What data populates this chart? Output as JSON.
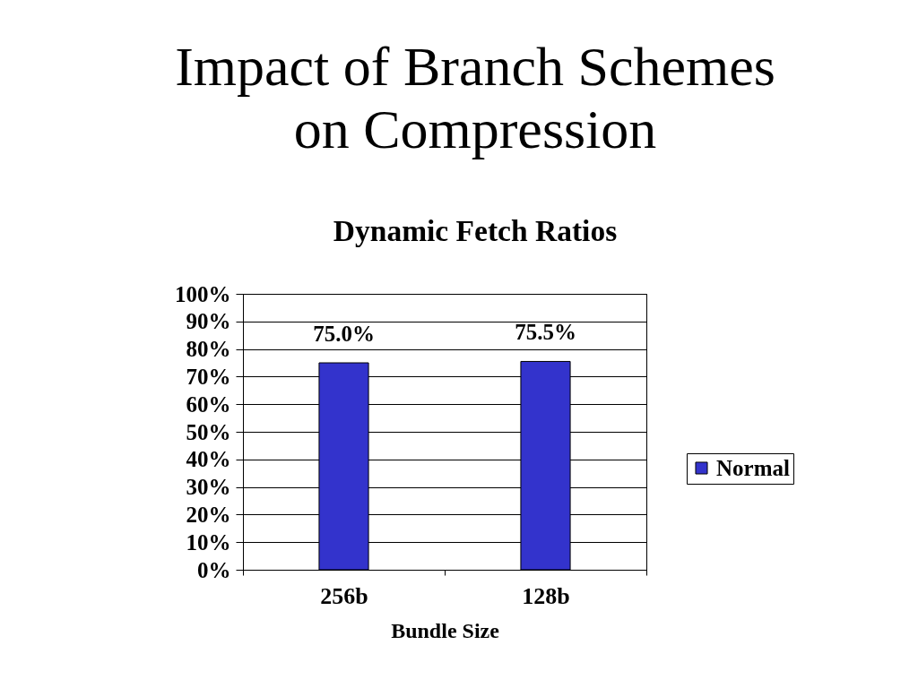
{
  "chart_data": {
    "type": "bar",
    "title": "Impact of Branch Schemes\non Compression",
    "subtitle": "Dynamic Fetch Ratios",
    "xlabel": "Bundle Size",
    "categories": [
      "256b",
      "128b"
    ],
    "series": [
      {
        "name": "Normal",
        "color": "#3333cc",
        "values": [
          75,
          75.5
        ],
        "value_labels": [
          "75.0%",
          "75.5%"
        ]
      }
    ],
    "ylim": [
      0,
      100
    ],
    "yticks": [
      {
        "value": 0,
        "label": "0%"
      },
      {
        "value": 10,
        "label": "10%"
      },
      {
        "value": 20,
        "label": "20%"
      },
      {
        "value": 30,
        "label": "30%"
      },
      {
        "value": 40,
        "label": "40%"
      },
      {
        "value": 50,
        "label": "50%"
      },
      {
        "value": 60,
        "label": "60%"
      },
      {
        "value": 70,
        "label": "70%"
      },
      {
        "value": 80,
        "label": "80%"
      },
      {
        "value": 90,
        "label": "90%"
      },
      {
        "value": 100,
        "label": "100%"
      }
    ],
    "grid": "y",
    "legend": "right"
  }
}
